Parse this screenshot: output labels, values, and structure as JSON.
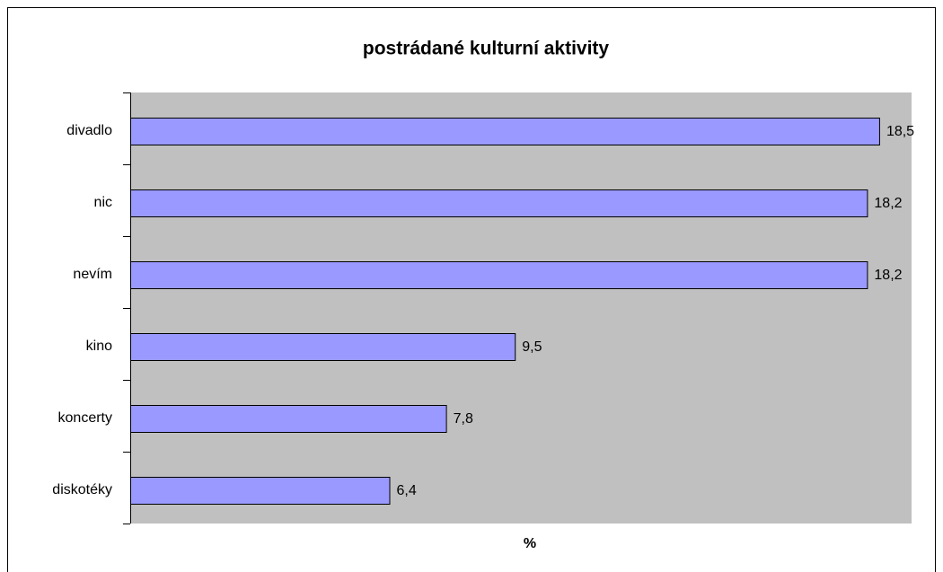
{
  "chart_data": {
    "type": "bar",
    "orientation": "horizontal",
    "title": "postrádané kulturní aktivity",
    "xlabel": "%",
    "categories": [
      "divadlo",
      "nic",
      "nevím",
      "kino",
      "koncerty",
      "diskotéky"
    ],
    "values": [
      18.5,
      18.2,
      18.2,
      9.5,
      7.8,
      6.4
    ],
    "value_labels": [
      "18,5",
      "18,2",
      "18,2",
      "9,5",
      "7,8",
      "6,4"
    ],
    "color": "#9999ff",
    "xlim": [
      0,
      19.3
    ]
  }
}
